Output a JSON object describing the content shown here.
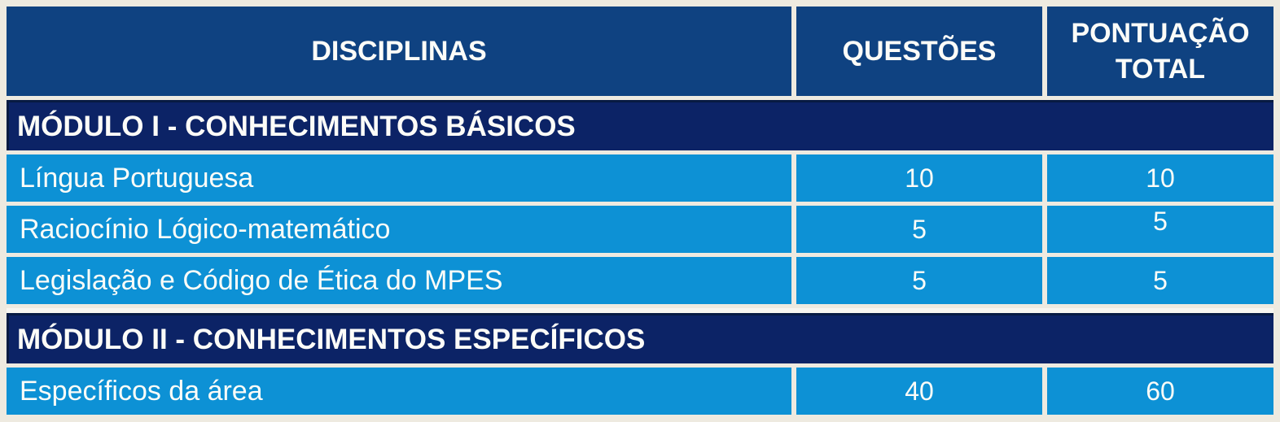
{
  "table": {
    "columns": [
      {
        "label": "DISCIPLINAS"
      },
      {
        "label": "QUESTÕES"
      },
      {
        "label": "PONTUAÇÃO TOTAL"
      }
    ],
    "sections": [
      {
        "title": "MÓDULO I - CONHECIMENTOS BÁSICOS",
        "rows": [
          {
            "disciplina": "Língua Portuguesa",
            "questoes": "10",
            "pontuacao": "10"
          },
          {
            "disciplina": "Raciocínio Lógico-matemático",
            "questoes": "5",
            "pontuacao": "5"
          },
          {
            "disciplina": "Legislação e Código de Ética do MPES",
            "questoes": "5",
            "pontuacao": "5"
          }
        ]
      },
      {
        "title": "MÓDULO II - CONHECIMENTOS ESPECÍFICOS",
        "rows": [
          {
            "disciplina": "Específicos da área",
            "questoes": "40",
            "pontuacao": "60"
          }
        ]
      }
    ],
    "colors": {
      "header_bg": "#0F4281",
      "module_bg": "#0C2366",
      "module_edge": "#071A42",
      "row_bg": "#0D91D5",
      "frame_bg": "#EEEAE0",
      "band": "#F8F6F0",
      "text": "#FCFCF8"
    }
  }
}
